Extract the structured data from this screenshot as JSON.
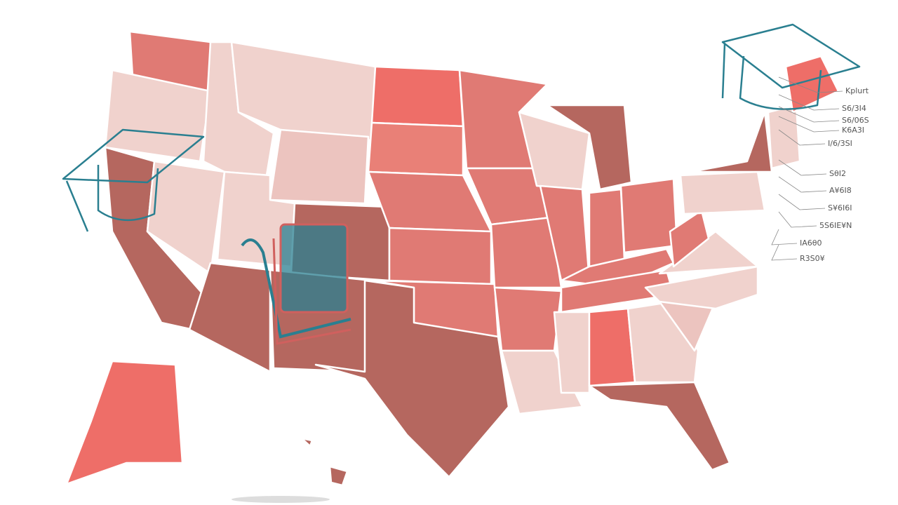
{
  "labels": [
    "Kplurt",
    "S6/3I4",
    "S6/06S",
    "K6A3I",
    "I/6/3SI",
    "SθI2",
    "A¥6I8",
    "S¥6I6I",
    "5S6IE¥N",
    "IA6θ0",
    "R3S0¥"
  ]
}
